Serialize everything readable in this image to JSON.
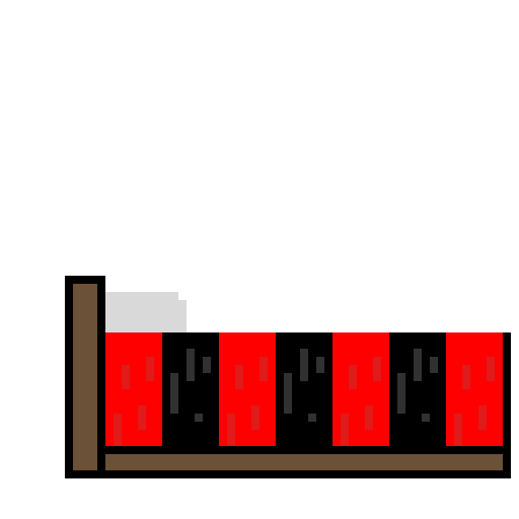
{
  "sprite": {
    "subject": "pixel-art bed",
    "colors": {
      "background": "#ffffff",
      "outline": "#000000",
      "wood": "#6b5138",
      "pillow": "#d9d9d9",
      "pillow_shade": "#f2f2f2",
      "blanket_red": "#ff0000",
      "blanket_red_texture": "#d92020",
      "blanket_black": "#000000",
      "blanket_black_texture": "#3a3a3a"
    },
    "blanket_pattern": [
      "red",
      "black",
      "red",
      "black",
      "red",
      "black",
      "red"
    ]
  }
}
